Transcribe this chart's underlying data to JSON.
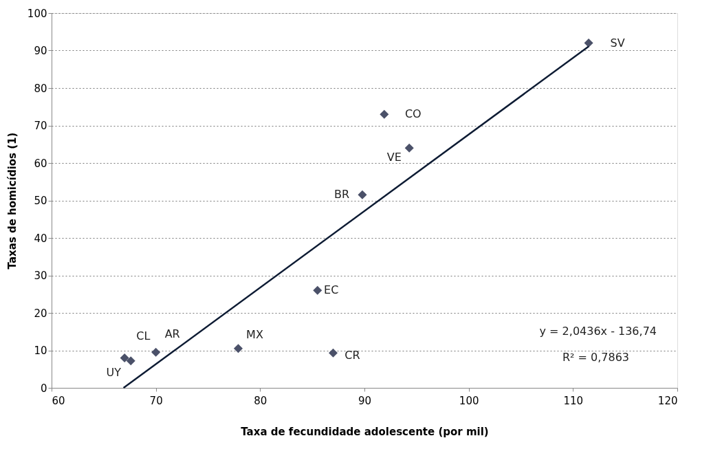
{
  "chart_data": {
    "type": "scatter",
    "xlabel": "Taxa de fecundidade adolescente (por mil)",
    "ylabel": "Taxas de homicídios (1)",
    "xlim": [
      60,
      120
    ],
    "xticks": [
      60,
      70,
      80,
      90,
      100,
      110,
      120
    ],
    "ylim": [
      0,
      100
    ],
    "yticks": [
      0,
      10,
      20,
      30,
      40,
      50,
      60,
      70,
      80,
      90,
      100
    ],
    "grid": "y",
    "marker": "diamond",
    "series": [
      {
        "color": "#4b5169",
        "x": [
          67.0,
          67.6,
          70.0,
          77.9,
          85.5,
          87.0,
          89.8,
          91.9,
          94.3,
          111.5
        ],
        "values": [
          8.0,
          7.2,
          9.5,
          10.5,
          26.0,
          9.3,
          51.5,
          73.0,
          64.0,
          92.0
        ]
      },
      {
        "type": "line",
        "marker": "none",
        "color": "#0d1b33",
        "x": [
          66.9,
          111.5
        ],
        "values": [
          0,
          91.1
        ]
      }
    ],
    "annotations": [
      {
        "text": "UY",
        "x": 67.0,
        "y": 8.0
      },
      {
        "text": "CL",
        "x": 67.6,
        "y": 7.2
      },
      {
        "text": "AR",
        "x": 70.0,
        "y": 9.5
      },
      {
        "text": "MX",
        "x": 77.9,
        "y": 10.5
      },
      {
        "text": "EC",
        "x": 85.5,
        "y": 26.0
      },
      {
        "text": "CR",
        "x": 87.0,
        "y": 9.3
      },
      {
        "text": "BR",
        "x": 89.8,
        "y": 51.5
      },
      {
        "text": "CO",
        "x": 91.9,
        "y": 73.0
      },
      {
        "text": "VE",
        "x": 94.3,
        "y": 64.0
      },
      {
        "text": "SV",
        "x": 111.5,
        "y": 92.0
      },
      "y = 2,0436x  - 136,74",
      "R² = 0,7863"
    ]
  }
}
